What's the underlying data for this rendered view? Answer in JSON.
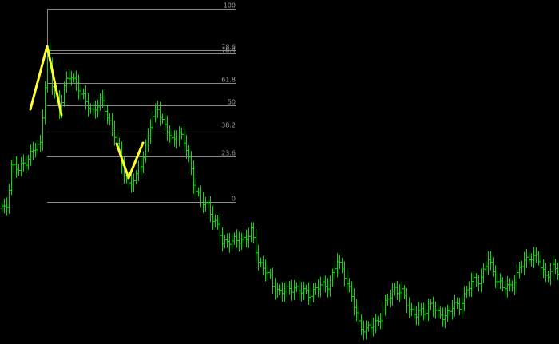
{
  "chart_data": {
    "type": "bar",
    "chart_style": "ohlc",
    "grid": false,
    "background_color": "#000000",
    "bar_color": "#00e000",
    "fib_line_color": "#8a8a8a",
    "fib_label_color": "#9a9a9a",
    "pattern_color": "#ffff33",
    "ylim": [
      0,
      426
    ],
    "xlim": [
      0,
      232
    ],
    "fibonacci": {
      "start_index": 19,
      "end_index": 98,
      "levels": [
        {
          "label": "100",
          "price": 415
        },
        {
          "label": "78.6",
          "price": 363
        },
        {
          "label": "76.4",
          "price": 359
        },
        {
          "label": "61.8",
          "price": 322
        },
        {
          "label": "50",
          "price": 294
        },
        {
          "label": "38.2",
          "price": 265
        },
        {
          "label": "23.6",
          "price": 230
        },
        {
          "label": "0",
          "price": 173
        }
      ]
    },
    "pattern_lines": [
      {
        "points": [
          [
            12,
            289
          ],
          [
            19,
            368
          ],
          [
            25,
            282
          ]
        ]
      },
      {
        "points": [
          [
            48,
            246
          ],
          [
            53,
            203
          ],
          [
            59,
            247
          ]
        ]
      }
    ],
    "anchors": [
      {
        "i": 0,
        "v": 165
      },
      {
        "i": 1,
        "v": 162
      },
      {
        "i": 2,
        "v": 168
      },
      {
        "i": 4,
        "v": 220
      },
      {
        "i": 7,
        "v": 212
      },
      {
        "i": 11,
        "v": 230
      },
      {
        "i": 16,
        "v": 245
      },
      {
        "i": 19,
        "v": 360
      },
      {
        "i": 21,
        "v": 318
      },
      {
        "i": 24,
        "v": 290
      },
      {
        "i": 26,
        "v": 318
      },
      {
        "i": 29,
        "v": 330
      },
      {
        "i": 32,
        "v": 318
      },
      {
        "i": 35,
        "v": 295
      },
      {
        "i": 38,
        "v": 288
      },
      {
        "i": 41,
        "v": 300
      },
      {
        "i": 44,
        "v": 282
      },
      {
        "i": 47,
        "v": 258
      },
      {
        "i": 50,
        "v": 218
      },
      {
        "i": 53,
        "v": 196
      },
      {
        "i": 56,
        "v": 202
      },
      {
        "i": 59,
        "v": 232
      },
      {
        "i": 62,
        "v": 268
      },
      {
        "i": 65,
        "v": 292
      },
      {
        "i": 68,
        "v": 268
      },
      {
        "i": 71,
        "v": 248
      },
      {
        "i": 74,
        "v": 262
      },
      {
        "i": 77,
        "v": 238
      },
      {
        "i": 80,
        "v": 200
      },
      {
        "i": 83,
        "v": 172
      },
      {
        "i": 86,
        "v": 168
      },
      {
        "i": 89,
        "v": 148
      },
      {
        "i": 92,
        "v": 122
      },
      {
        "i": 95,
        "v": 126
      },
      {
        "i": 98,
        "v": 122
      },
      {
        "i": 101,
        "v": 128
      },
      {
        "i": 104,
        "v": 135
      },
      {
        "i": 107,
        "v": 100
      },
      {
        "i": 110,
        "v": 88
      },
      {
        "i": 113,
        "v": 68
      },
      {
        "i": 116,
        "v": 62
      },
      {
        "i": 119,
        "v": 60
      },
      {
        "i": 122,
        "v": 68
      },
      {
        "i": 125,
        "v": 60
      },
      {
        "i": 128,
        "v": 58
      },
      {
        "i": 131,
        "v": 64
      },
      {
        "i": 134,
        "v": 68
      },
      {
        "i": 137,
        "v": 72
      },
      {
        "i": 140,
        "v": 98
      },
      {
        "i": 143,
        "v": 84
      },
      {
        "i": 146,
        "v": 52
      },
      {
        "i": 149,
        "v": 22
      },
      {
        "i": 152,
        "v": 12
      },
      {
        "i": 155,
        "v": 18
      },
      {
        "i": 158,
        "v": 30
      },
      {
        "i": 161,
        "v": 50
      },
      {
        "i": 164,
        "v": 66
      },
      {
        "i": 167,
        "v": 58
      },
      {
        "i": 170,
        "v": 40
      },
      {
        "i": 173,
        "v": 32
      },
      {
        "i": 176,
        "v": 34
      },
      {
        "i": 179,
        "v": 46
      },
      {
        "i": 182,
        "v": 30
      },
      {
        "i": 185,
        "v": 32
      },
      {
        "i": 188,
        "v": 40
      },
      {
        "i": 191,
        "v": 44
      },
      {
        "i": 194,
        "v": 62
      },
      {
        "i": 197,
        "v": 74
      },
      {
        "i": 200,
        "v": 78
      },
      {
        "i": 203,
        "v": 100
      },
      {
        "i": 206,
        "v": 80
      },
      {
        "i": 209,
        "v": 64
      },
      {
        "i": 212,
        "v": 68
      },
      {
        "i": 215,
        "v": 80
      },
      {
        "i": 218,
        "v": 100
      },
      {
        "i": 221,
        "v": 106
      },
      {
        "i": 224,
        "v": 98
      },
      {
        "i": 227,
        "v": 82
      },
      {
        "i": 230,
        "v": 88
      },
      {
        "i": 232,
        "v": 86
      }
    ]
  }
}
